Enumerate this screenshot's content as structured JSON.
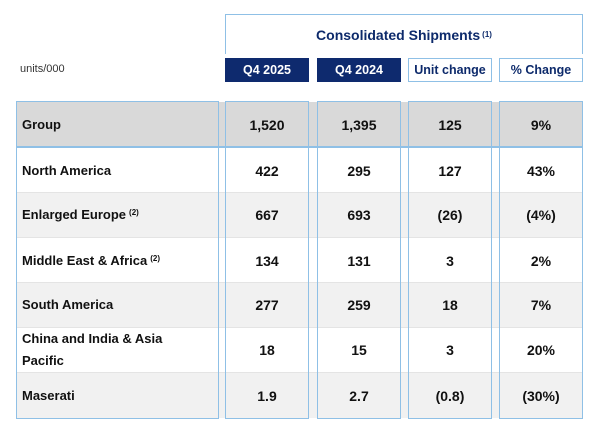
{
  "header": {
    "title": "Consolidated Shipments",
    "title_note": "(1)",
    "units": "units/000"
  },
  "columns": [
    "Q4 2025",
    "Q4 2024",
    "Unit change",
    "% Change"
  ],
  "rows": [
    {
      "label": "Group",
      "note": "",
      "values": [
        "1,520",
        "1,395",
        "125",
        "9%"
      ]
    },
    {
      "label": "North America",
      "note": "",
      "values": [
        "422",
        "295",
        "127",
        "43%"
      ]
    },
    {
      "label": "Enlarged Europe",
      "note": "(2)",
      "values": [
        "667",
        "693",
        "(26)",
        "(4%)"
      ]
    },
    {
      "label": "Middle East & Africa",
      "note": "(2)",
      "values": [
        "134",
        "131",
        "3",
        "2%"
      ]
    },
    {
      "label": "South America",
      "note": "",
      "values": [
        "277",
        "259",
        "18",
        "7%"
      ]
    },
    {
      "label": "China and India & Asia Pacific",
      "note": "",
      "values": [
        "18",
        "15",
        "3",
        "20%"
      ]
    },
    {
      "label": "Maserati",
      "note": "",
      "values": [
        "1.9",
        "2.7",
        "(0.8)",
        "(30%)"
      ]
    }
  ],
  "colors": {
    "navy": "#0e2a6e",
    "frame_blue": "#8fc0e6",
    "group_gray": "#d9d9d9",
    "row_shade": "#f1f1f1"
  }
}
